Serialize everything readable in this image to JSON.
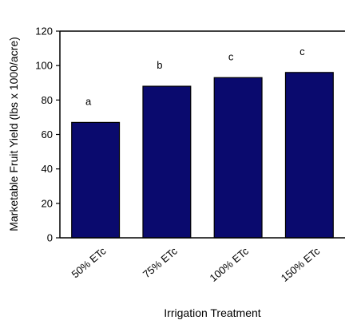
{
  "chart_data": {
    "type": "bar",
    "title": "",
    "xlabel": "Irrigation Treatment",
    "ylabel": "Marketable Fruit Yield (lbs x 1000/acre)",
    "categories": [
      "50% ETc",
      "75% ETc",
      "100% ETc",
      "150% ETc"
    ],
    "values": [
      67,
      88,
      93,
      96
    ],
    "data_labels": [
      "a",
      "b",
      "c",
      "c"
    ],
    "ylim": [
      0,
      120
    ],
    "yticks": [
      0,
      20,
      40,
      60,
      80,
      100,
      120
    ],
    "grid": false,
    "legend": "none",
    "bar_color": "#0a0a6e",
    "bar_edge_color": "#000000"
  }
}
